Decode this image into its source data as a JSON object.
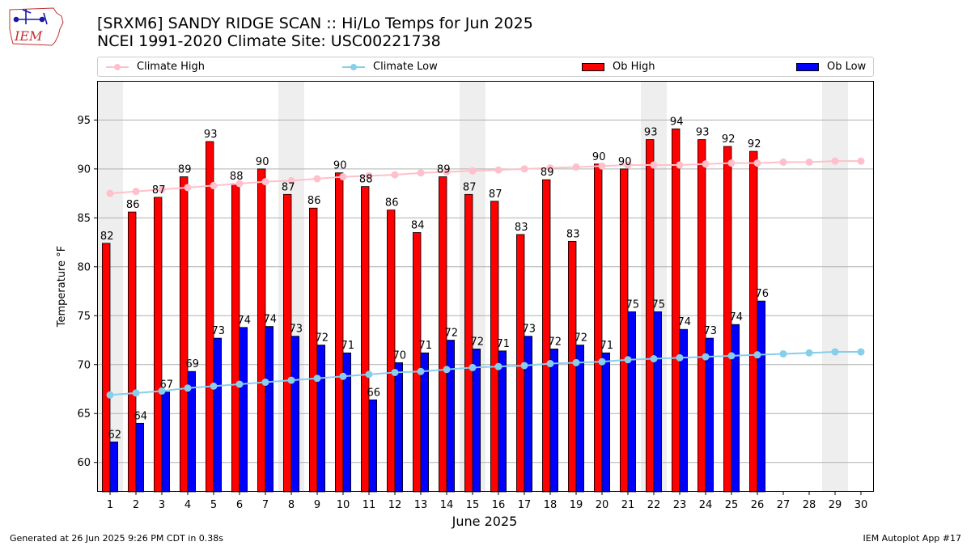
{
  "header": {
    "title_line1": "[SRXM6] SANDY RIDGE SCAN :: Hi/Lo Temps for Jun 2025",
    "title_line2": "NCEI 1991-2020 Climate Site: USC00221738"
  },
  "logo": {
    "text": "IEM"
  },
  "legend": {
    "climate_high": "Climate High",
    "climate_low": "Climate Low",
    "ob_high": "Ob High",
    "ob_low": "Ob Low"
  },
  "footer": {
    "left": "Generated at 26 Jun 2025 9:26 PM CDT in 0.38s",
    "right": "IEM Autoplot App #17"
  },
  "colors": {
    "climate_high": "#ffc0cb",
    "climate_low": "#87ceeb",
    "ob_high": "#ff0000",
    "ob_low": "#0000ff",
    "weekend_shade": "#eeeeee",
    "grid": "#b0b0b0"
  },
  "chart_data": {
    "type": "bar",
    "xlabel": "June 2025",
    "ylabel": "Temperature °F",
    "xlim": [
      0.5,
      30.5
    ],
    "ylim": [
      57,
      99
    ],
    "yticks": [
      60,
      65,
      70,
      75,
      80,
      85,
      90,
      95
    ],
    "grid": true,
    "legend_position": "top",
    "days": [
      1,
      2,
      3,
      4,
      5,
      6,
      7,
      8,
      9,
      10,
      11,
      12,
      13,
      14,
      15,
      16,
      17,
      18,
      19,
      20,
      21,
      22,
      23,
      24,
      25,
      26,
      27,
      28,
      29,
      30
    ],
    "weekend_day_pairs": [
      [
        0,
        1
      ],
      [
        7,
        8
      ],
      [
        14,
        15
      ],
      [
        21,
        22
      ],
      [
        28,
        29
      ]
    ],
    "series": [
      {
        "name": "Ob High",
        "kind": "bar",
        "values": [
          82.4,
          85.6,
          87.1,
          89.2,
          92.8,
          88.5,
          90.0,
          87.4,
          86.0,
          89.6,
          88.2,
          85.8,
          83.5,
          89.2,
          87.4,
          86.7,
          83.3,
          88.9,
          82.6,
          90.5,
          90.0,
          93.0,
          94.1,
          93.0,
          92.3,
          91.8
        ],
        "labels": [
          "82",
          "86",
          "87",
          "89",
          "93",
          "88",
          "90",
          "87",
          "86",
          "90",
          "88",
          "86",
          "84",
          "89",
          "87",
          "87",
          "83",
          "89",
          "83",
          "90",
          "90",
          "93",
          "94",
          "93",
          "92",
          "92"
        ]
      },
      {
        "name": "Ob Low",
        "kind": "bar",
        "values": [
          62.1,
          64.0,
          67.2,
          69.3,
          72.7,
          73.8,
          73.9,
          72.9,
          72.0,
          71.2,
          66.4,
          70.2,
          71.2,
          72.5,
          71.6,
          71.4,
          72.9,
          71.6,
          72.0,
          71.2,
          75.4,
          75.4,
          73.6,
          72.7,
          74.1,
          76.5
        ],
        "labels": [
          "62",
          "64",
          "67",
          "69",
          "73",
          "74",
          "74",
          "73",
          "72",
          "71",
          "66",
          "70",
          "71",
          "72",
          "72",
          "71",
          "73",
          "72",
          "72",
          "71",
          "75",
          "75",
          "74",
          "73",
          "74",
          "76"
        ]
      },
      {
        "name": "Climate High",
        "kind": "line",
        "values": [
          87.5,
          87.7,
          87.9,
          88.1,
          88.3,
          88.5,
          88.7,
          88.8,
          89.0,
          89.2,
          89.3,
          89.4,
          89.6,
          89.7,
          89.8,
          89.9,
          90.0,
          90.1,
          90.2,
          90.3,
          90.4,
          90.4,
          90.4,
          90.5,
          90.6,
          90.6,
          90.7,
          90.7,
          90.8,
          90.8
        ]
      },
      {
        "name": "Climate Low",
        "kind": "line",
        "values": [
          66.9,
          67.1,
          67.3,
          67.6,
          67.8,
          68.0,
          68.2,
          68.4,
          68.6,
          68.8,
          69.0,
          69.2,
          69.3,
          69.5,
          69.7,
          69.8,
          69.9,
          70.1,
          70.2,
          70.3,
          70.5,
          70.6,
          70.7,
          70.8,
          70.9,
          71.0,
          71.1,
          71.2,
          71.3,
          71.3
        ]
      }
    ]
  }
}
